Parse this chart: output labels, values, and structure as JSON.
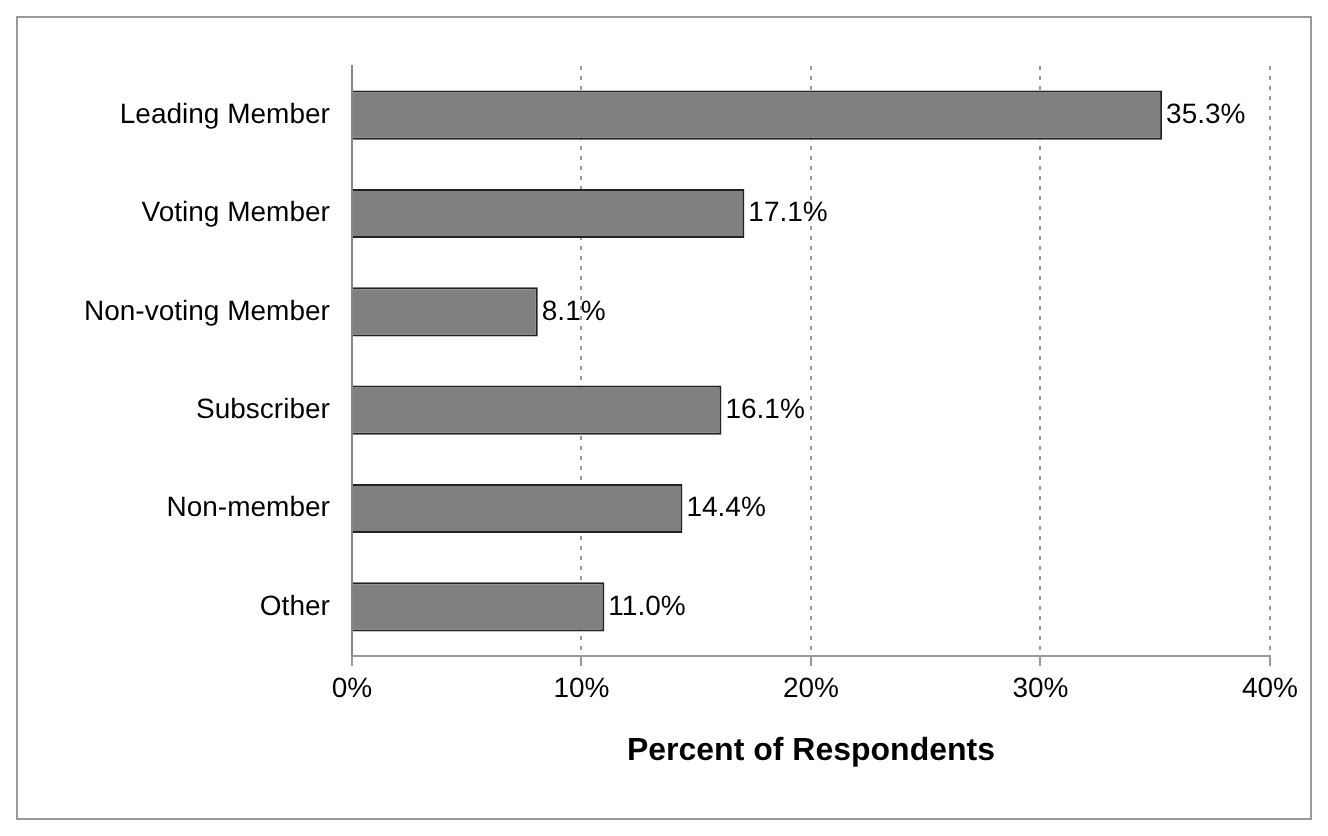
{
  "chart_data": {
    "type": "bar",
    "orientation": "horizontal",
    "xlabel": "Percent of Respondents",
    "categories": [
      "Leading Member",
      "Voting Member",
      "Non-voting Member",
      "Subscriber",
      "Non-member",
      "Other"
    ],
    "values": [
      35.3,
      17.1,
      8.1,
      16.1,
      14.4,
      11.0
    ],
    "value_labels": [
      "35.3%",
      "17.1%",
      "8.1%",
      "16.1%",
      "14.4%",
      "11.0%"
    ],
    "color": "#808080",
    "xlim": [
      0,
      40
    ],
    "xticks": [
      {
        "value": 0,
        "label": "0%"
      },
      {
        "value": 10,
        "label": "10%"
      },
      {
        "value": 20,
        "label": "20%"
      },
      {
        "value": 30,
        "label": "30%"
      },
      {
        "value": 40,
        "label": "40%"
      }
    ],
    "grid": "x",
    "legend": false
  }
}
